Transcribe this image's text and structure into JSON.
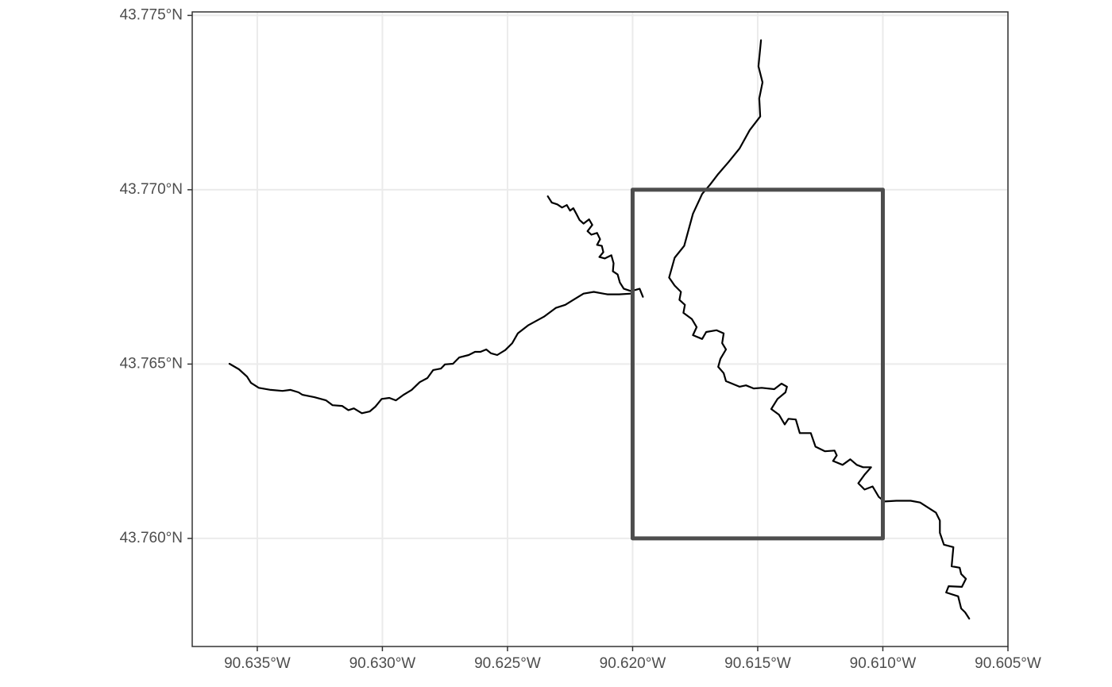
{
  "chart_data": {
    "type": "map",
    "xlim": [
      -90.6376,
      -90.605
    ],
    "ylim": [
      43.7569,
      43.7751
    ],
    "xticks": [
      {
        "value": -90.635,
        "label": "90.635°W"
      },
      {
        "value": -90.63,
        "label": "90.630°W"
      },
      {
        "value": -90.625,
        "label": "90.625°W"
      },
      {
        "value": -90.62,
        "label": "90.620°W"
      },
      {
        "value": -90.615,
        "label": "90.615°W"
      },
      {
        "value": -90.61,
        "label": "90.610°W"
      },
      {
        "value": -90.605,
        "label": "90.605°W"
      }
    ],
    "yticks": [
      {
        "value": 43.76,
        "label": "43.760°N"
      },
      {
        "value": 43.765,
        "label": "43.765°N"
      },
      {
        "value": 43.77,
        "label": "43.770°N"
      },
      {
        "value": 43.775,
        "label": "43.775°N"
      }
    ],
    "grid": true,
    "line_color": "#000000",
    "lines": [
      {
        "x": [
          -90.63611,
          -90.63573,
          -90.63541,
          -90.63525,
          -90.63494,
          -90.63446,
          -90.63399,
          -90.63367,
          -90.63335,
          -90.6332,
          -90.63272,
          -90.63225,
          -90.63199,
          -90.63161,
          -90.63136,
          -90.63114,
          -90.63082,
          -90.63051,
          -90.63028,
          -90.63003,
          -90.62972,
          -90.62946,
          -90.62915,
          -90.62883,
          -90.62851,
          -90.6282,
          -90.62797,
          -90.62766,
          -90.6275,
          -90.62718,
          -90.62693,
          -90.62655,
          -90.6263,
          -90.62608,
          -90.62585,
          -90.62566,
          -90.62541,
          -90.62509,
          -90.62481,
          -90.62459,
          -90.62418,
          -90.62354,
          -90.62307,
          -90.62269,
          -90.62237,
          -90.62196,
          -90.62155,
          -90.62101,
          -90.62054,
          -90.62006
        ],
        "y": [
          43.76501,
          43.76485,
          43.76464,
          43.76446,
          43.76432,
          43.76426,
          43.76423,
          43.76426,
          43.76419,
          43.76412,
          43.76405,
          43.76396,
          43.76382,
          43.7638,
          43.76368,
          43.76373,
          43.76359,
          43.76364,
          43.76378,
          43.764,
          43.76403,
          43.76396,
          43.76412,
          43.76426,
          43.76448,
          43.7646,
          43.76483,
          43.76487,
          43.76499,
          43.76501,
          43.76519,
          43.76526,
          43.76535,
          43.76535,
          43.76542,
          43.76531,
          43.76526,
          43.7654,
          43.7656,
          43.76588,
          43.76611,
          43.76636,
          43.76661,
          43.7667,
          43.76684,
          43.76702,
          43.76707,
          43.767,
          43.767,
          43.76702
        ]
      },
      {
        "x": [
          -90.62339,
          -90.62323,
          -90.62301,
          -90.62282,
          -90.62263,
          -90.6225,
          -90.62237,
          -90.62225,
          -90.62212,
          -90.62196,
          -90.62174,
          -90.62161,
          -90.6218,
          -90.62165,
          -90.62142,
          -90.6213,
          -90.62142,
          -90.62123,
          -90.62117,
          -90.62133,
          -90.62111,
          -90.62085,
          -90.62076,
          -90.62079,
          -90.6206,
          -90.62051,
          -90.62035,
          -90.62006,
          -90.61972,
          -90.61959
        ],
        "y": [
          43.76981,
          43.76963,
          43.76958,
          43.76949,
          43.76956,
          43.7694,
          43.76947,
          43.76931,
          43.76913,
          43.76903,
          43.76915,
          43.76899,
          43.76881,
          43.76871,
          43.76876,
          43.76858,
          43.76842,
          43.76839,
          43.76821,
          43.76807,
          43.76803,
          43.76812,
          43.76789,
          43.76766,
          43.76757,
          43.76734,
          43.76716,
          43.76709,
          43.76716,
          43.76693
        ]
      },
      {
        "x": [
          -90.61487,
          -90.61497,
          -90.61481,
          -90.61494,
          -90.6149,
          -90.61532,
          -90.61573,
          -90.61617,
          -90.61658,
          -90.6169,
          -90.61722,
          -90.61759,
          -90.61794,
          -90.61832,
          -90.61854,
          -90.61832,
          -90.61807,
          -90.61813,
          -90.61791,
          -90.61797,
          -90.61763,
          -90.61744,
          -90.61759,
          -90.61722,
          -90.61706,
          -90.61665,
          -90.61636,
          -90.61642,
          -90.61627,
          -90.61649,
          -90.61658,
          -90.61636,
          -90.61627,
          -90.61573,
          -90.61547,
          -90.61516,
          -90.61484,
          -90.61434,
          -90.61405,
          -90.61383,
          -90.61389,
          -90.61421,
          -90.61446,
          -90.61415,
          -90.61392,
          -90.61377,
          -90.61348,
          -90.61332,
          -90.61288,
          -90.61269,
          -90.61231,
          -90.61193,
          -90.61184,
          -90.61199,
          -90.61161,
          -90.6113,
          -90.61104,
          -90.61079,
          -90.61047,
          -90.61073,
          -90.61098,
          -90.61073,
          -90.61041,
          -90.61016,
          -90.60994,
          -90.60946,
          -90.60889,
          -90.60851,
          -90.60788,
          -90.60772,
          -90.60772,
          -90.60756,
          -90.60718,
          -90.60725,
          -90.60693,
          -90.60687,
          -90.60668,
          -90.60684,
          -90.60737,
          -90.60747,
          -90.60699,
          -90.60687,
          -90.60671,
          -90.60655
        ],
        "y": [
          43.77429,
          43.77354,
          43.77308,
          43.77262,
          43.7721,
          43.77171,
          43.77118,
          43.77079,
          43.77045,
          43.77015,
          43.76988,
          43.76931,
          43.76839,
          43.76805,
          43.76748,
          43.76725,
          43.76707,
          43.76684,
          43.7667,
          43.76647,
          43.76629,
          43.76606,
          43.76583,
          43.76572,
          43.76592,
          43.76597,
          43.76588,
          43.7656,
          43.76542,
          43.76515,
          43.76492,
          43.76474,
          43.76451,
          43.76435,
          43.76439,
          43.7643,
          43.76432,
          43.76428,
          43.76444,
          43.76435,
          43.76419,
          43.764,
          43.76371,
          43.76355,
          43.76327,
          43.76343,
          43.76341,
          43.76302,
          43.76302,
          43.76263,
          43.7625,
          43.76252,
          43.76238,
          43.76222,
          43.76211,
          43.76227,
          43.76211,
          43.76204,
          43.76204,
          43.76183,
          43.76158,
          43.7614,
          43.76149,
          43.76119,
          43.76106,
          43.76108,
          43.76108,
          43.76103,
          43.76074,
          43.76051,
          43.76016,
          43.75982,
          43.75975,
          43.7592,
          43.75916,
          43.75898,
          43.75884,
          43.75861,
          43.75863,
          43.75845,
          43.75834,
          43.75799,
          43.75788,
          43.7577
        ]
      }
    ],
    "box": {
      "xmin": -90.62,
      "xmax": -90.61,
      "ymin": 43.76,
      "ymax": 43.77,
      "color": "#4d4d4d"
    }
  }
}
